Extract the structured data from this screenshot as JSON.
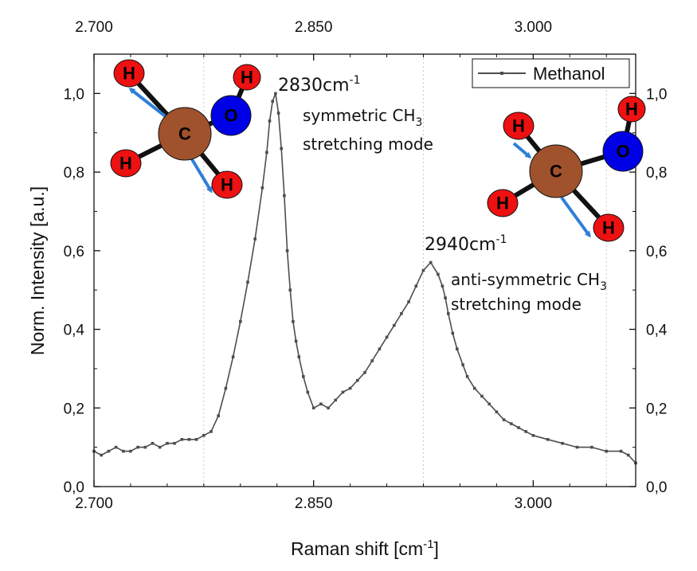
{
  "chart_data": {
    "type": "line",
    "xlabel_main": "Raman shift [cm",
    "xlabel_sup": "-1",
    "xlabel_end": "]",
    "ylabel": "Norm. Intensity [a.u.]",
    "xlim": [
      2700,
      3070
    ],
    "ylim": [
      0,
      1.1
    ],
    "x_ticks": [
      2700,
      2850,
      3000
    ],
    "x_tick_labels": [
      "2.700",
      "2.850",
      "3.000"
    ],
    "y_ticks": [
      0,
      0.2,
      0.4,
      0.6,
      0.8,
      1.0
    ],
    "y_tick_labels": [
      "0,0",
      "0,2",
      "0,4",
      "0,6",
      "0,8",
      "1,0"
    ],
    "legend": {
      "position": "top-right",
      "label": "Methanol"
    },
    "series": [
      {
        "name": "Methanol",
        "color": "#4d4d4d",
        "x": [
          2700,
          2705,
          2710,
          2715,
          2720,
          2725,
          2730,
          2735,
          2740,
          2745,
          2750,
          2755,
          2760,
          2765,
          2770,
          2775,
          2780,
          2785,
          2790,
          2795,
          2800,
          2805,
          2810,
          2815,
          2818,
          2820,
          2822,
          2824,
          2826,
          2828,
          2830,
          2832,
          2834,
          2836,
          2838,
          2840,
          2843,
          2846,
          2850,
          2855,
          2860,
          2865,
          2870,
          2875,
          2880,
          2885,
          2890,
          2895,
          2900,
          2905,
          2910,
          2915,
          2920,
          2925,
          2930,
          2935,
          2938,
          2940,
          2942,
          2945,
          2948,
          2952,
          2955,
          2960,
          2965,
          2970,
          2975,
          2980,
          2985,
          2990,
          2995,
          3000,
          3010,
          3020,
          3030,
          3040,
          3050,
          3060,
          3065,
          3070
        ],
        "y": [
          0.09,
          0.08,
          0.09,
          0.1,
          0.09,
          0.09,
          0.1,
          0.1,
          0.11,
          0.1,
          0.11,
          0.11,
          0.12,
          0.12,
          0.12,
          0.13,
          0.14,
          0.18,
          0.25,
          0.33,
          0.42,
          0.52,
          0.63,
          0.76,
          0.85,
          0.93,
          0.98,
          1.0,
          0.95,
          0.86,
          0.74,
          0.6,
          0.5,
          0.42,
          0.37,
          0.33,
          0.28,
          0.24,
          0.2,
          0.21,
          0.2,
          0.22,
          0.24,
          0.25,
          0.27,
          0.29,
          0.32,
          0.35,
          0.38,
          0.41,
          0.44,
          0.47,
          0.51,
          0.55,
          0.57,
          0.54,
          0.51,
          0.48,
          0.44,
          0.39,
          0.35,
          0.31,
          0.28,
          0.25,
          0.23,
          0.21,
          0.19,
          0.17,
          0.16,
          0.15,
          0.14,
          0.13,
          0.12,
          0.11,
          0.1,
          0.1,
          0.09,
          0.09,
          0.08,
          0.06
        ]
      }
    ],
    "annotations": [
      {
        "id": "peak1",
        "main": "2830cm",
        "sup": "-1"
      },
      {
        "id": "mode1a",
        "text": "symmetric CH",
        "sub": "3"
      },
      {
        "id": "mode1b",
        "text": "stretching mode"
      },
      {
        "id": "peak2",
        "main": "2940cm",
        "sup": "-1"
      },
      {
        "id": "mode2a",
        "text": "anti-symmetric CH",
        "sub": "3"
      },
      {
        "id": "mode2b",
        "text": "stretching mode"
      }
    ],
    "molecules": [
      {
        "id": "molecule-left",
        "atoms": {
          "C": "C",
          "O": "O",
          "H": "H"
        }
      },
      {
        "id": "molecule-right",
        "atoms": {
          "C": "C",
          "O": "O",
          "H": "H"
        }
      }
    ],
    "colors": {
      "carbon": "#a0522d",
      "oxygen": "#0000e6",
      "hydrogen": "#ee1111",
      "arrow": "#2f7fd8",
      "grid": "#c8c8c8"
    }
  }
}
